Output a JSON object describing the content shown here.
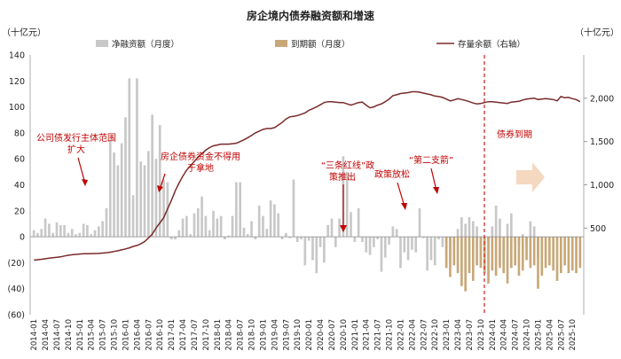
{
  "chart_data": {
    "type": "bar",
    "title": "房企境内债券融资额和增速",
    "left_unit": "（十亿元）",
    "right_unit": "（十亿元）",
    "legend": {
      "net": "净融资额（月度）",
      "maturity": "到期额（月度）",
      "stock": "存量余额（右轴）"
    },
    "left_axis": {
      "min": -60,
      "max": 140,
      "step": 20,
      "ticks": [
        "140",
        "120",
        "100",
        "80",
        "60",
        "40",
        "20",
        "0",
        "(20)",
        "(40)",
        "(60)"
      ]
    },
    "right_axis": {
      "min": -500,
      "max": 2500,
      "step": 500,
      "ticks": [
        "2,000",
        "1,500",
        "1,000",
        "500"
      ]
    },
    "x_tick_labels": [
      "2014-01",
      "2014-04",
      "2014-07",
      "2014-10",
      "2015-01",
      "2015-04",
      "2015-07",
      "2015-10",
      "2016-01",
      "2016-04",
      "2016-07",
      "2016-10",
      "2017-01",
      "2017-04",
      "2017-07",
      "2017-10",
      "2018-01",
      "2018-04",
      "2018-07",
      "2018-10",
      "2019-01",
      "2019-04",
      "2019-07",
      "2019-10",
      "2020-01",
      "2020-04",
      "2020-07",
      "2020-10",
      "2021-01",
      "2021-04",
      "2021-07",
      "2021-10",
      "2022-01",
      "2022-04",
      "2022-07",
      "2022-10",
      "2023-01",
      "2023-04",
      "2023-07",
      "2023-10",
      "2024-01",
      "2024-04",
      "2024-07",
      "2024-10",
      "2025-01",
      "2025-04",
      "2025-07",
      "2025-10"
    ],
    "net_financing": [
      5,
      3,
      6,
      14,
      10,
      3,
      11,
      9,
      9,
      3,
      6,
      2,
      3,
      10,
      9,
      2,
      5,
      8,
      12,
      22,
      75,
      65,
      55,
      72,
      92,
      122,
      32,
      122,
      58,
      55,
      66,
      94,
      60,
      86,
      44,
      42,
      -2,
      -2,
      5,
      14,
      16,
      2,
      18,
      22,
      31,
      16,
      5,
      20,
      14,
      16,
      -2,
      1,
      16,
      42,
      42,
      7,
      2,
      12,
      -2,
      24,
      16,
      6,
      28,
      25,
      18,
      -2,
      3,
      -1,
      44,
      -4,
      -2,
      -22,
      -3,
      -18,
      -28,
      -8,
      -20,
      9,
      14,
      -8,
      14,
      62,
      50,
      19,
      -4,
      22,
      -4,
      -12,
      -14,
      -8,
      -2,
      -27,
      -16,
      -6,
      8,
      6,
      -24,
      -12,
      -18,
      -10,
      -12,
      22,
      -1,
      -26,
      -18,
      -22,
      -2,
      -8,
      -14,
      -20,
      -6,
      6,
      15,
      10,
      15,
      12,
      8,
      -10,
      -16,
      -4,
      8,
      24,
      14,
      -12,
      10,
      18,
      -4,
      -6,
      2,
      -8,
      12,
      8,
      -16,
      -14
    ],
    "maturity": [
      -24,
      -31,
      -22,
      -28,
      -38,
      -42,
      -28,
      -34,
      -22,
      -24,
      -28,
      -36,
      -26,
      -30,
      -24,
      -28,
      -36,
      -24,
      -22,
      -30,
      -26,
      -18,
      -24,
      -22,
      -40,
      -30,
      -24,
      -22,
      -26,
      -34,
      -28,
      -22,
      -28,
      -26,
      -28,
      -24
    ],
    "stock": [
      130,
      135,
      140,
      146,
      152,
      158,
      162,
      168,
      178,
      186,
      192,
      196,
      200,
      203,
      204,
      205,
      206,
      208,
      212,
      216,
      222,
      230,
      238,
      248,
      260,
      272,
      288,
      300,
      318,
      345,
      385,
      430,
      500,
      560,
      620,
      720,
      820,
      930,
      1020,
      1100,
      1170,
      1220,
      1270,
      1320,
      1360,
      1400,
      1430,
      1450,
      1460,
      1470,
      1470,
      1470,
      1475,
      1480,
      1500,
      1520,
      1545,
      1570,
      1600,
      1620,
      1640,
      1650,
      1650,
      1660,
      1690,
      1720,
      1760,
      1785,
      1790,
      1800,
      1815,
      1830,
      1860,
      1880,
      1900,
      1925,
      1950,
      1960,
      1960,
      1955,
      1950,
      1950,
      1935,
      1920,
      1935,
      1950,
      1955,
      1920,
      1890,
      1900,
      1920,
      1935,
      1960,
      1990,
      2030,
      2040,
      2055,
      2060,
      2065,
      2075,
      2075,
      2070,
      2060,
      2050,
      2040,
      2025,
      2020,
      2010,
      1990,
      1970,
      1980,
      1995,
      1985,
      1975,
      1960,
      1945,
      1935,
      1940,
      1950,
      1960,
      1960,
      1955,
      1950,
      1945,
      1940,
      1955,
      1960,
      1965,
      1980,
      1990,
      1995,
      2000,
      1985,
      1990,
      1995,
      1990,
      1985,
      1970,
      2020,
      2005,
      2010,
      1995,
      1985,
      1960
    ],
    "annotations": {
      "a1": "公司债发行主体范围扩大",
      "a2": "房企债券资金不得用于拿地",
      "a3": "“三条红线”政策推出",
      "a4": "政策放松",
      "a5": "“第二支箭”",
      "a6": "债券到期"
    }
  }
}
